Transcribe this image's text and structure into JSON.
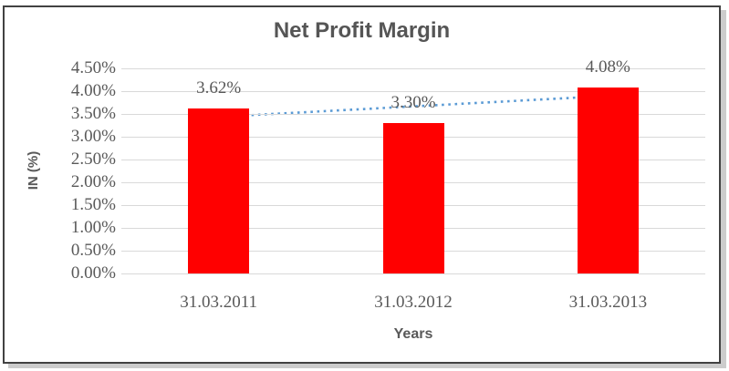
{
  "chart_data": {
    "type": "bar",
    "title": "Net Profit Margin",
    "categories": [
      "31.03.2011",
      "31.03.2012",
      "31.03.2013"
    ],
    "values": [
      3.62,
      3.3,
      4.08
    ],
    "data_labels": [
      "3.62%",
      "3.30%",
      "4.08%"
    ],
    "xlabel": "Years",
    "ylabel": "IN (%)",
    "ylim": [
      0,
      4.5
    ],
    "ytick_step": 0.5,
    "ytick_labels": [
      "0.00%",
      "0.50%",
      "1.00%",
      "1.50%",
      "2.00%",
      "2.50%",
      "3.00%",
      "3.50%",
      "4.00%",
      "4.50%"
    ],
    "grid": true,
    "legend": "none",
    "bar_color": "#ff0000",
    "gridline_color": "#d9d9d9",
    "text_color": "#595959",
    "trendline": {
      "type": "linear",
      "style": "dotted",
      "color": "#5b9bd5"
    }
  }
}
